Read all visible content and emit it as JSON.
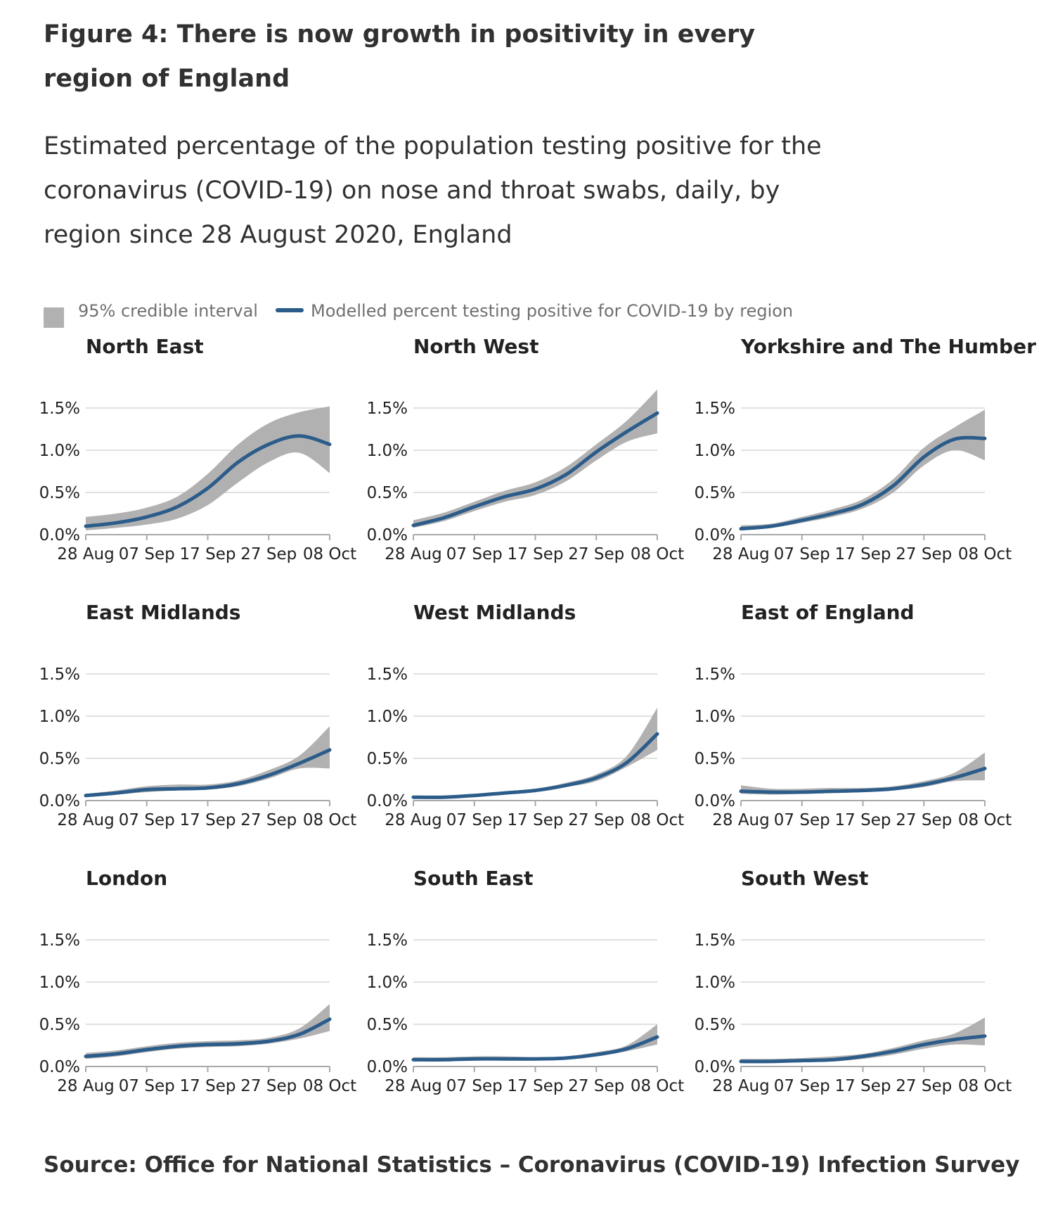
{
  "title": "Figure 4: There is now growth in positivity in every region of England",
  "subtitle": "Estimated percentage of the population testing positive for the coronavirus (COVID-19) on nose and throat swabs, daily, by region since 28 August 2020, England",
  "legend": {
    "interval_label": "95% credible interval",
    "line_label": "Modelled percent testing positive for COVID-19 by region"
  },
  "source": "Source: Office for National Statistics – Coronavirus (COVID-19) Infection Survey",
  "colors": {
    "line": "#2b5c8a",
    "band": "#b2b1b2",
    "grid": "#d7d7d7"
  },
  "chart_data": [
    {
      "type": "line",
      "title": "North East",
      "x": [
        "28 Aug",
        "02 Sep",
        "07 Sep",
        "12 Sep",
        "17 Sep",
        "22 Sep",
        "27 Sep",
        "02 Oct",
        "08 Oct"
      ],
      "x_ticks": [
        "28 Aug",
        "07 Sep",
        "17 Sep",
        "27 Sep",
        "08 Oct"
      ],
      "y_ticks": [
        "0.0%",
        "0.5%",
        "1.0%",
        "1.5%"
      ],
      "ylim": [
        0,
        1.5
      ],
      "series": [
        {
          "name": "Modelled percent testing positive for COVID-19 by region",
          "values": [
            0.1,
            0.14,
            0.21,
            0.33,
            0.55,
            0.86,
            1.07,
            1.17,
            1.07
          ]
        },
        {
          "name": "95% credible interval lower",
          "values": [
            0.05,
            0.08,
            0.12,
            0.19,
            0.35,
            0.62,
            0.86,
            0.97,
            0.73
          ]
        },
        {
          "name": "95% credible interval upper",
          "values": [
            0.21,
            0.25,
            0.32,
            0.45,
            0.72,
            1.07,
            1.32,
            1.45,
            1.52
          ]
        }
      ]
    },
    {
      "type": "line",
      "title": "North West",
      "x": [
        "28 Aug",
        "02 Sep",
        "07 Sep",
        "12 Sep",
        "17 Sep",
        "22 Sep",
        "27 Sep",
        "02 Oct",
        "08 Oct"
      ],
      "x_ticks": [
        "28 Aug",
        "07 Sep",
        "17 Sep",
        "27 Sep",
        "08 Oct"
      ],
      "y_ticks": [
        "0.0%",
        "0.5%",
        "1.0%",
        "1.5%"
      ],
      "ylim": [
        0,
        1.5
      ],
      "series": [
        {
          "name": "Modelled percent testing positive for COVID-19 by region",
          "values": [
            0.11,
            0.2,
            0.33,
            0.45,
            0.54,
            0.71,
            0.98,
            1.22,
            1.44
          ]
        },
        {
          "name": "95% credible interval lower",
          "values": [
            0.08,
            0.16,
            0.28,
            0.39,
            0.47,
            0.63,
            0.88,
            1.1,
            1.2
          ]
        },
        {
          "name": "95% credible interval upper",
          "values": [
            0.17,
            0.26,
            0.39,
            0.52,
            0.62,
            0.8,
            1.07,
            1.35,
            1.72
          ]
        }
      ]
    },
    {
      "type": "line",
      "title": "Yorkshire and The Humber",
      "x": [
        "28 Aug",
        "02 Sep",
        "07 Sep",
        "12 Sep",
        "17 Sep",
        "22 Sep",
        "27 Sep",
        "02 Oct",
        "08 Oct"
      ],
      "x_ticks": [
        "28 Aug",
        "07 Sep",
        "17 Sep",
        "27 Sep",
        "08 Oct"
      ],
      "y_ticks": [
        "0.0%",
        "0.5%",
        "1.0%",
        "1.5%"
      ],
      "ylim": [
        0,
        1.5
      ],
      "series": [
        {
          "name": "Modelled percent testing positive for COVID-19 by region",
          "values": [
            0.07,
            0.1,
            0.17,
            0.25,
            0.36,
            0.58,
            0.92,
            1.13,
            1.14
          ]
        },
        {
          "name": "95% credible interval lower",
          "values": [
            0.05,
            0.08,
            0.14,
            0.21,
            0.31,
            0.5,
            0.82,
            1.0,
            0.88
          ]
        },
        {
          "name": "95% credible interval upper",
          "values": [
            0.11,
            0.13,
            0.21,
            0.3,
            0.42,
            0.66,
            1.03,
            1.27,
            1.48
          ]
        }
      ]
    },
    {
      "type": "line",
      "title": "East Midlands",
      "x": [
        "28 Aug",
        "02 Sep",
        "07 Sep",
        "12 Sep",
        "17 Sep",
        "22 Sep",
        "27 Sep",
        "02 Oct",
        "08 Oct"
      ],
      "x_ticks": [
        "28 Aug",
        "07 Sep",
        "17 Sep",
        "27 Sep",
        "08 Oct"
      ],
      "y_ticks": [
        "0.0%",
        "0.5%",
        "1.0%",
        "1.5%"
      ],
      "ylim": [
        0,
        1.5
      ],
      "series": [
        {
          "name": "Modelled percent testing positive for COVID-19 by region",
          "values": [
            0.06,
            0.09,
            0.13,
            0.14,
            0.15,
            0.2,
            0.3,
            0.44,
            0.6
          ]
        },
        {
          "name": "95% credible interval lower",
          "values": [
            0.04,
            0.07,
            0.1,
            0.12,
            0.13,
            0.17,
            0.26,
            0.38,
            0.38
          ]
        },
        {
          "name": "95% credible interval upper",
          "values": [
            0.08,
            0.12,
            0.17,
            0.19,
            0.19,
            0.24,
            0.36,
            0.53,
            0.88
          ]
        }
      ]
    },
    {
      "type": "line",
      "title": "West Midlands",
      "x": [
        "28 Aug",
        "02 Sep",
        "07 Sep",
        "12 Sep",
        "17 Sep",
        "22 Sep",
        "27 Sep",
        "02 Oct",
        "08 Oct"
      ],
      "x_ticks": [
        "28 Aug",
        "07 Sep",
        "17 Sep",
        "27 Sep",
        "08 Oct"
      ],
      "y_ticks": [
        "0.0%",
        "0.5%",
        "1.0%",
        "1.5%"
      ],
      "ylim": [
        0,
        1.5
      ],
      "series": [
        {
          "name": "Modelled percent testing positive for COVID-19 by region",
          "values": [
            0.04,
            0.04,
            0.06,
            0.09,
            0.12,
            0.18,
            0.27,
            0.45,
            0.79
          ]
        },
        {
          "name": "95% credible interval lower",
          "values": [
            0.03,
            0.03,
            0.05,
            0.08,
            0.1,
            0.16,
            0.23,
            0.4,
            0.6
          ]
        },
        {
          "name": "95% credible interval upper",
          "values": [
            0.05,
            0.05,
            0.07,
            0.11,
            0.14,
            0.21,
            0.31,
            0.53,
            1.1
          ]
        }
      ]
    },
    {
      "type": "line",
      "title": "East of England",
      "x": [
        "28 Aug",
        "02 Sep",
        "07 Sep",
        "12 Sep",
        "17 Sep",
        "22 Sep",
        "27 Sep",
        "02 Oct",
        "08 Oct"
      ],
      "x_ticks": [
        "28 Aug",
        "07 Sep",
        "17 Sep",
        "27 Sep",
        "08 Oct"
      ],
      "y_ticks": [
        "0.0%",
        "0.5%",
        "1.0%",
        "1.5%"
      ],
      "ylim": [
        0,
        1.5
      ],
      "series": [
        {
          "name": "Modelled percent testing positive for COVID-19 by region",
          "values": [
            0.11,
            0.1,
            0.1,
            0.11,
            0.12,
            0.14,
            0.19,
            0.27,
            0.38
          ]
        },
        {
          "name": "95% credible interval lower",
          "values": [
            0.08,
            0.07,
            0.08,
            0.09,
            0.1,
            0.12,
            0.16,
            0.23,
            0.24
          ]
        },
        {
          "name": "95% credible interval upper",
          "values": [
            0.18,
            0.14,
            0.14,
            0.15,
            0.15,
            0.17,
            0.23,
            0.33,
            0.57
          ]
        }
      ]
    },
    {
      "type": "line",
      "title": "London",
      "x": [
        "28 Aug",
        "02 Sep",
        "07 Sep",
        "12 Sep",
        "17 Sep",
        "22 Sep",
        "27 Sep",
        "02 Oct",
        "08 Oct"
      ],
      "x_ticks": [
        "28 Aug",
        "07 Sep",
        "17 Sep",
        "27 Sep",
        "08 Oct"
      ],
      "y_ticks": [
        "0.0%",
        "0.5%",
        "1.0%",
        "1.5%"
      ],
      "ylim": [
        0,
        1.5
      ],
      "series": [
        {
          "name": "Modelled percent testing positive for COVID-19 by region",
          "values": [
            0.12,
            0.15,
            0.2,
            0.24,
            0.26,
            0.27,
            0.3,
            0.38,
            0.56
          ]
        },
        {
          "name": "95% credible interval lower",
          "values": [
            0.09,
            0.12,
            0.17,
            0.21,
            0.23,
            0.24,
            0.27,
            0.33,
            0.42
          ]
        },
        {
          "name": "95% credible interval upper",
          "values": [
            0.16,
            0.19,
            0.24,
            0.28,
            0.3,
            0.31,
            0.34,
            0.45,
            0.74
          ]
        }
      ]
    },
    {
      "type": "line",
      "title": "South East",
      "x": [
        "28 Aug",
        "02 Sep",
        "07 Sep",
        "12 Sep",
        "17 Sep",
        "22 Sep",
        "27 Sep",
        "02 Oct",
        "08 Oct"
      ],
      "x_ticks": [
        "28 Aug",
        "07 Sep",
        "17 Sep",
        "27 Sep",
        "08 Oct"
      ],
      "y_ticks": [
        "0.0%",
        "0.5%",
        "1.0%",
        "1.5%"
      ],
      "ylim": [
        0,
        1.5
      ],
      "series": [
        {
          "name": "Modelled percent testing positive for COVID-19 by region",
          "values": [
            0.08,
            0.08,
            0.09,
            0.09,
            0.09,
            0.1,
            0.14,
            0.21,
            0.35
          ]
        },
        {
          "name": "95% credible interval lower",
          "values": [
            0.06,
            0.06,
            0.07,
            0.07,
            0.07,
            0.08,
            0.12,
            0.18,
            0.26
          ]
        },
        {
          "name": "95% credible interval upper",
          "values": [
            0.11,
            0.11,
            0.12,
            0.12,
            0.11,
            0.12,
            0.17,
            0.25,
            0.5
          ]
        }
      ]
    },
    {
      "type": "line",
      "title": "South West",
      "x": [
        "28 Aug",
        "02 Sep",
        "07 Sep",
        "12 Sep",
        "17 Sep",
        "22 Sep",
        "27 Sep",
        "02 Oct",
        "08 Oct"
      ],
      "x_ticks": [
        "28 Aug",
        "07 Sep",
        "17 Sep",
        "27 Sep",
        "08 Oct"
      ],
      "y_ticks": [
        "0.0%",
        "0.5%",
        "1.0%",
        "1.5%"
      ],
      "ylim": [
        0,
        1.5
      ],
      "series": [
        {
          "name": "Modelled percent testing positive for COVID-19 by region",
          "values": [
            0.06,
            0.06,
            0.07,
            0.08,
            0.12,
            0.18,
            0.26,
            0.32,
            0.36
          ]
        },
        {
          "name": "95% credible interval lower",
          "values": [
            0.04,
            0.04,
            0.05,
            0.06,
            0.09,
            0.14,
            0.21,
            0.26,
            0.25
          ]
        },
        {
          "name": "95% credible interval upper",
          "values": [
            0.09,
            0.09,
            0.1,
            0.12,
            0.15,
            0.22,
            0.31,
            0.39,
            0.58
          ]
        }
      ]
    }
  ]
}
